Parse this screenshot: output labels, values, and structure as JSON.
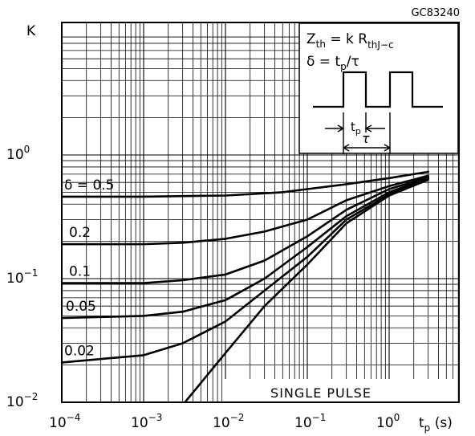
{
  "chart_data": {
    "type": "line",
    "figure_code": "GC83240",
    "ylabel": "K",
    "xlabel": "tp (s)",
    "x_scale": "log",
    "y_scale": "log",
    "xlim": [
      0.0001,
      1
    ],
    "ylim": [
      0.01,
      1
    ],
    "x_ticks": [
      {
        "base": "10",
        "exp": "−4"
      },
      {
        "base": "10",
        "exp": "−3"
      },
      {
        "base": "10",
        "exp": "−2"
      },
      {
        "base": "10",
        "exp": "−1"
      },
      {
        "base": "10",
        "exp": "0"
      }
    ],
    "y_ticks": [
      {
        "base": "10",
        "exp": "−2"
      },
      {
        "base": "10",
        "exp": "−1"
      },
      {
        "base": "10",
        "exp": "0"
      }
    ],
    "grid": true,
    "inset": {
      "formula_lhs": "Z",
      "formula_lhs_sub": "th",
      "formula_mid": " = k R",
      "formula_sub": "thJ−c",
      "duty_lhs": "δ = t",
      "duty_sub": "p",
      "duty_rhs": "/τ",
      "tp_label": "t",
      "tp_sub": "p",
      "tau_label": "τ"
    },
    "annotation": "SINGLE PULSE",
    "series": [
      {
        "name": "δ = 0.5",
        "points": [
          [
            0.0001,
            0.46
          ],
          [
            0.001,
            0.46
          ],
          [
            0.01,
            0.47
          ],
          [
            0.05,
            0.5
          ],
          [
            0.1,
            0.53
          ],
          [
            0.3,
            0.58
          ],
          [
            1,
            0.65
          ],
          [
            3,
            0.73
          ]
        ]
      },
      {
        "name": "0.2",
        "points": [
          [
            0.0001,
            0.19
          ],
          [
            0.001,
            0.19
          ],
          [
            0.003,
            0.195
          ],
          [
            0.01,
            0.21
          ],
          [
            0.03,
            0.24
          ],
          [
            0.1,
            0.3
          ],
          [
            0.3,
            0.43
          ],
          [
            1,
            0.56
          ],
          [
            3,
            0.68
          ]
        ]
      },
      {
        "name": "0.1",
        "points": [
          [
            0.0001,
            0.092
          ],
          [
            0.001,
            0.092
          ],
          [
            0.003,
            0.097
          ],
          [
            0.01,
            0.108
          ],
          [
            0.03,
            0.14
          ],
          [
            0.1,
            0.22
          ],
          [
            0.3,
            0.36
          ],
          [
            1,
            0.53
          ],
          [
            3,
            0.66
          ]
        ]
      },
      {
        "name": "0.05",
        "points": [
          [
            0.0001,
            0.048
          ],
          [
            0.001,
            0.05
          ],
          [
            0.003,
            0.054
          ],
          [
            0.01,
            0.067
          ],
          [
            0.03,
            0.1
          ],
          [
            0.1,
            0.18
          ],
          [
            0.3,
            0.32
          ],
          [
            1,
            0.5
          ],
          [
            3,
            0.65
          ]
        ]
      },
      {
        "name": "0.02",
        "points": [
          [
            0.0001,
            0.021
          ],
          [
            0.001,
            0.024
          ],
          [
            0.003,
            0.03
          ],
          [
            0.01,
            0.045
          ],
          [
            0.03,
            0.08
          ],
          [
            0.1,
            0.15
          ],
          [
            0.3,
            0.3
          ],
          [
            1,
            0.48
          ],
          [
            3,
            0.64
          ]
        ]
      },
      {
        "name": "",
        "points": [
          [
            0.0032,
            0.01
          ],
          [
            0.01,
            0.025
          ],
          [
            0.03,
            0.06
          ],
          [
            0.1,
            0.13
          ],
          [
            0.3,
            0.28
          ],
          [
            1,
            0.47
          ],
          [
            3,
            0.63
          ]
        ]
      }
    ]
  }
}
